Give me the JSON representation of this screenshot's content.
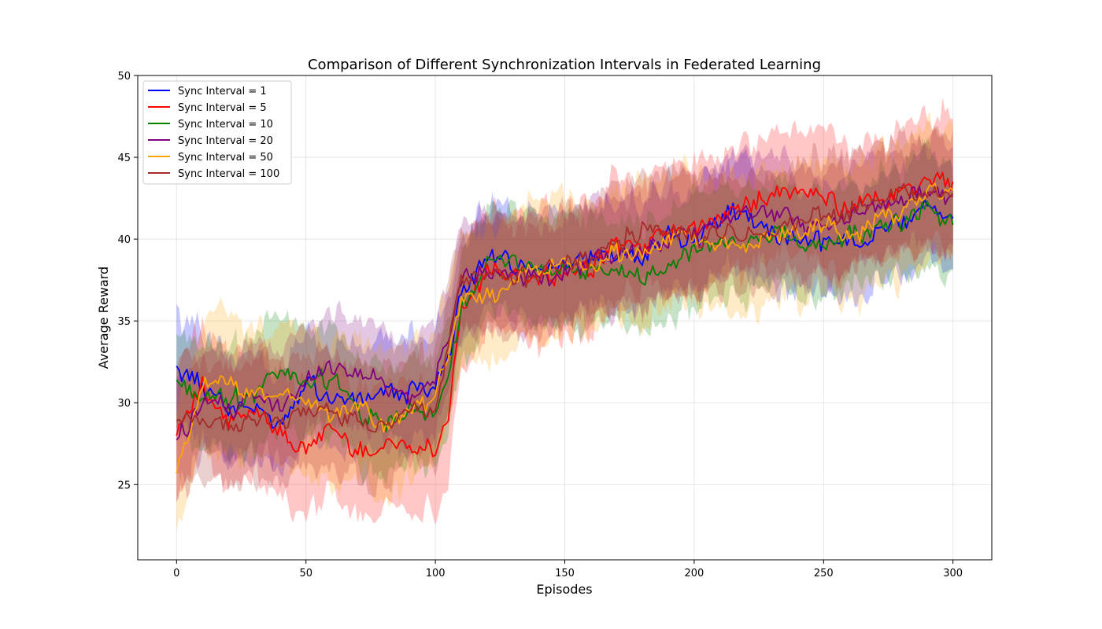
{
  "chart_data": {
    "type": "line",
    "title": "Comparison of Different Synchronization Intervals in Federated Learning",
    "xlabel": "Episodes",
    "ylabel": "Average Reward",
    "xlim": [
      -15,
      315
    ],
    "ylim": [
      20.4,
      50
    ],
    "xticks": [
      "0",
      "50",
      "100",
      "150",
      "200",
      "250",
      "300"
    ],
    "yticks": [
      "25",
      "30",
      "35",
      "40",
      "45",
      "50"
    ],
    "grid": true,
    "legend_position": "upper-left",
    "shaded_band": "mean ± variability",
    "series": [
      {
        "name": "Sync Interval = 1",
        "color": "#0000ff",
        "x": [
          0,
          10,
          20,
          30,
          40,
          50,
          60,
          70,
          80,
          90,
          100,
          105,
          110,
          120,
          130,
          140,
          150,
          160,
          170,
          180,
          190,
          200,
          210,
          220,
          230,
          240,
          250,
          260,
          270,
          280,
          290,
          300
        ],
        "y": [
          32.1,
          31.2,
          29.8,
          29.6,
          29.0,
          31.4,
          30.3,
          30.4,
          30.8,
          30.6,
          31.2,
          32.5,
          36.5,
          38.9,
          38.5,
          38.2,
          38.6,
          39.0,
          39.2,
          39.0,
          40.2,
          40.0,
          41.5,
          41.8,
          40.4,
          39.9,
          40.0,
          39.6,
          40.5,
          40.9,
          42.0,
          41.4
        ],
        "spread": 3.3
      },
      {
        "name": "Sync Interval = 5",
        "color": "#ff0000",
        "x": [
          0,
          10,
          20,
          30,
          40,
          50,
          60,
          70,
          80,
          90,
          100,
          105,
          110,
          120,
          130,
          140,
          150,
          160,
          170,
          180,
          190,
          200,
          210,
          220,
          230,
          240,
          250,
          260,
          270,
          280,
          290,
          300
        ],
        "y": [
          28.5,
          30.9,
          28.6,
          29.5,
          28.2,
          27.2,
          28.6,
          27.0,
          27.5,
          27.4,
          27.1,
          29.0,
          35.5,
          38.0,
          37.8,
          37.5,
          37.6,
          38.2,
          39.8,
          39.6,
          40.3,
          40.5,
          41.4,
          42.2,
          42.8,
          43.0,
          42.5,
          41.8,
          42.4,
          42.8,
          43.6,
          43.3
        ],
        "spread": 4.0
      },
      {
        "name": "Sync Interval = 10",
        "color": "#008000",
        "x": [
          0,
          10,
          20,
          30,
          40,
          50,
          60,
          70,
          80,
          90,
          100,
          105,
          110,
          120,
          130,
          140,
          150,
          160,
          170,
          180,
          190,
          200,
          210,
          220,
          230,
          240,
          250,
          260,
          270,
          280,
          290,
          300
        ],
        "y": [
          31.3,
          30.3,
          30.1,
          30.6,
          32.2,
          31.0,
          31.6,
          29.5,
          28.5,
          29.6,
          29.2,
          31.0,
          36.0,
          38.5,
          38.6,
          38.4,
          37.9,
          38.0,
          38.1,
          37.5,
          38.3,
          39.3,
          39.6,
          39.8,
          40.4,
          40.0,
          39.4,
          40.2,
          40.7,
          41.2,
          41.6,
          40.8
        ],
        "spread": 3.4
      },
      {
        "name": "Sync Interval = 20",
        "color": "#800080",
        "x": [
          0,
          10,
          20,
          30,
          40,
          50,
          60,
          70,
          80,
          90,
          100,
          105,
          110,
          120,
          130,
          140,
          150,
          160,
          170,
          180,
          190,
          200,
          210,
          220,
          230,
          240,
          250,
          260,
          270,
          280,
          290,
          300
        ],
        "y": [
          27.5,
          30.3,
          29.5,
          30.4,
          30.0,
          31.2,
          32.4,
          32.1,
          31.3,
          30.3,
          31.4,
          34.0,
          37.4,
          38.0,
          37.8,
          37.4,
          38.0,
          38.5,
          39.0,
          39.3,
          40.0,
          40.2,
          41.2,
          41.8,
          41.4,
          41.0,
          40.8,
          41.4,
          41.8,
          42.5,
          43.0,
          42.3
        ],
        "spread": 3.4
      },
      {
        "name": "Sync Interval = 50",
        "color": "#ffa500",
        "x": [
          0,
          10,
          20,
          30,
          40,
          50,
          60,
          70,
          80,
          90,
          100,
          105,
          110,
          120,
          130,
          140,
          150,
          160,
          170,
          180,
          190,
          200,
          210,
          220,
          230,
          240,
          250,
          260,
          270,
          280,
          290,
          300
        ],
        "y": [
          25.5,
          30.9,
          31.3,
          30.6,
          30.4,
          30.2,
          29.4,
          29.5,
          28.9,
          29.4,
          30.5,
          33.0,
          36.5,
          36.4,
          37.4,
          38.2,
          38.6,
          38.4,
          39.2,
          39.0,
          40.2,
          40.0,
          39.6,
          39.4,
          40.1,
          40.6,
          41.0,
          39.8,
          41.0,
          41.6,
          42.6,
          42.9
        ],
        "spread": 4.2
      },
      {
        "name": "Sync Interval = 100",
        "color": "#a52a2a",
        "x": [
          0,
          10,
          20,
          30,
          40,
          50,
          60,
          70,
          80,
          90,
          100,
          105,
          110,
          120,
          130,
          140,
          150,
          160,
          170,
          180,
          190,
          200,
          210,
          220,
          230,
          240,
          250,
          260,
          270,
          280,
          290,
          300
        ],
        "y": [
          29.0,
          28.7,
          28.5,
          28.9,
          29.0,
          29.6,
          29.3,
          29.0,
          28.6,
          29.4,
          29.8,
          33.5,
          37.6,
          37.8,
          37.5,
          38.0,
          38.5,
          38.6,
          39.8,
          40.6,
          40.4,
          40.0,
          40.4,
          40.3,
          40.7,
          41.0,
          41.4,
          41.8,
          42.2,
          42.8,
          43.0,
          42.7
        ],
        "spread": 3.6
      }
    ]
  }
}
